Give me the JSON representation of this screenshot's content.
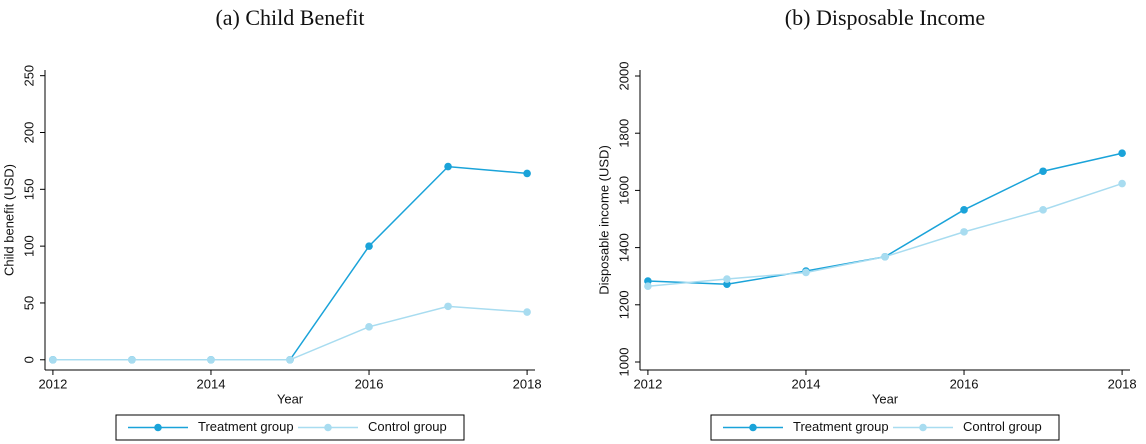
{
  "chart_data": [
    {
      "type": "line",
      "title": "(a) Child Benefit",
      "xlabel": "Year",
      "ylabel": "Child benefit (USD)",
      "x": [
        2012,
        2013,
        2014,
        2015,
        2016,
        2017,
        2018
      ],
      "xlim": [
        2011.9,
        2018.1
      ],
      "xticks": [
        2012,
        2014,
        2016,
        2018
      ],
      "ylim": [
        -9,
        255
      ],
      "yticks": [
        0,
        50,
        100,
        150,
        200,
        250
      ],
      "legend": "bottom",
      "series": [
        {
          "name": "Treatment group",
          "color": "#1aa3d9",
          "values": [
            0,
            0,
            0,
            0,
            100,
            170,
            164
          ]
        },
        {
          "name": "Control group",
          "color": "#a8dcf0",
          "values": [
            0,
            0,
            0,
            0,
            29,
            47,
            42
          ]
        }
      ]
    },
    {
      "type": "line",
      "title": "(b) Disposable Income",
      "xlabel": "Year",
      "ylabel": "Disposable income (USD)",
      "x": [
        2012,
        2013,
        2014,
        2015,
        2016,
        2017,
        2018
      ],
      "xlim": [
        2011.9,
        2018.1
      ],
      "xticks": [
        2012,
        2014,
        2016,
        2018
      ],
      "ylim": [
        972,
        2021
      ],
      "yticks": [
        1000,
        1200,
        1400,
        1600,
        1800,
        2000
      ],
      "legend": "bottom",
      "series": [
        {
          "name": "Treatment group",
          "color": "#1aa3d9",
          "values": [
            1283,
            1272,
            1318,
            1368,
            1532,
            1667,
            1730
          ]
        },
        {
          "name": "Control group",
          "color": "#a8dcf0",
          "values": [
            1265,
            1290,
            1313,
            1368,
            1455,
            1532,
            1624
          ]
        }
      ]
    }
  ]
}
